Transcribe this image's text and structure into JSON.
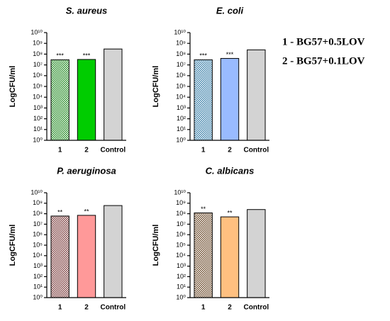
{
  "key": [
    "1 - BG57+0.5LOV",
    "2 - BG57+0.1LOV"
  ],
  "chart_data": [
    {
      "type": "bar",
      "title": "S. aureus",
      "ylabel": "LogCFU/ml",
      "log_scale": true,
      "categories": [
        "1",
        "2",
        "Control"
      ],
      "values": [
        30000000,
        32000000,
        300000000
      ],
      "colors": [
        "#1f8a1f",
        "#00cc00",
        "#d3d3d3"
      ],
      "checkered": [
        true,
        false,
        false
      ],
      "significance": [
        "***",
        "***"
      ],
      "ylim": [
        1,
        10000000000
      ],
      "yticks": [
        {
          "value": 1,
          "label": "10⁰"
        },
        {
          "value": 10,
          "label": "10¹"
        },
        {
          "value": 100,
          "label": "10²"
        },
        {
          "value": 1000,
          "label": "10³"
        },
        {
          "value": 10000,
          "label": "10⁴"
        },
        {
          "value": 100000,
          "label": "10⁵"
        },
        {
          "value": 1000000,
          "label": "10⁶"
        },
        {
          "value": 10000000,
          "label": "10⁷"
        },
        {
          "value": 100000000,
          "label": "10⁸"
        },
        {
          "value": 1000000000,
          "label": "10⁹"
        },
        {
          "value": 10000000000,
          "label": "10¹⁰"
        }
      ]
    },
    {
      "type": "bar",
      "title": "E. coli",
      "ylabel": "LogCFU/ml",
      "log_scale": true,
      "categories": [
        "1",
        "2",
        "Control"
      ],
      "values": [
        30000000,
        40000000,
        250000000
      ],
      "colors": [
        "#3a7fa8",
        "#99bbff",
        "#d3d3d3"
      ],
      "checkered": [
        true,
        false,
        false
      ],
      "significance": [
        "***",
        "***"
      ],
      "ylim": [
        1,
        10000000000
      ],
      "yticks": [
        {
          "value": 1,
          "label": "10⁰"
        },
        {
          "value": 10,
          "label": "10¹"
        },
        {
          "value": 100,
          "label": "10²"
        },
        {
          "value": 1000,
          "label": "10³"
        },
        {
          "value": 10000,
          "label": "10⁴"
        },
        {
          "value": 100000,
          "label": "10⁵"
        },
        {
          "value": 1000000,
          "label": "10⁶"
        },
        {
          "value": 10000000,
          "label": "10⁷"
        },
        {
          "value": 100000000,
          "label": "10⁸"
        },
        {
          "value": 1000000000,
          "label": "10⁹"
        },
        {
          "value": 10000000000,
          "label": "10¹⁰"
        }
      ]
    },
    {
      "type": "bar",
      "title": "P. aeruginosa",
      "ylabel": "LogCFU/ml",
      "log_scale": true,
      "categories": [
        "1",
        "2",
        "Control"
      ],
      "values": [
        60000000,
        70000000,
        600000000
      ],
      "colors": [
        "#7a3a3a",
        "#ff9999",
        "#d3d3d3"
      ],
      "checkered": [
        true,
        false,
        false
      ],
      "significance": [
        "**",
        "**"
      ],
      "ylim": [
        1,
        10000000000
      ],
      "yticks": [
        {
          "value": 1,
          "label": "10⁰"
        },
        {
          "value": 10,
          "label": "10¹"
        },
        {
          "value": 100,
          "label": "10²"
        },
        {
          "value": 1000,
          "label": "10³"
        },
        {
          "value": 10000,
          "label": "10⁴"
        },
        {
          "value": 100000,
          "label": "10⁵"
        },
        {
          "value": 1000000,
          "label": "10⁶"
        },
        {
          "value": 10000000,
          "label": "10⁷"
        },
        {
          "value": 100000000,
          "label": "10⁸"
        },
        {
          "value": 1000000000,
          "label": "10⁹"
        },
        {
          "value": 10000000000,
          "label": "10¹⁰"
        }
      ]
    },
    {
      "type": "bar",
      "title": "C. albicans",
      "ylabel": "LogCFU/ml",
      "log_scale": true,
      "categories": [
        "1",
        "2",
        "Control"
      ],
      "values": [
        120000000,
        50000000,
        250000000
      ],
      "colors": [
        "#6b4a2a",
        "#ffc080",
        "#d3d3d3"
      ],
      "checkered": [
        true,
        false,
        false
      ],
      "significance": [
        "**",
        "**"
      ],
      "ylim": [
        1,
        10000000000
      ],
      "yticks": [
        {
          "value": 1,
          "label": "10⁰"
        },
        {
          "value": 10,
          "label": "10¹"
        },
        {
          "value": 100,
          "label": "10²"
        },
        {
          "value": 1000,
          "label": "10³"
        },
        {
          "value": 10000,
          "label": "10⁴"
        },
        {
          "value": 100000,
          "label": "10⁵"
        },
        {
          "value": 1000000,
          "label": "10⁶"
        },
        {
          "value": 10000000,
          "label": "10⁷"
        },
        {
          "value": 100000000,
          "label": "10⁸"
        },
        {
          "value": 1000000000,
          "label": "10⁹"
        },
        {
          "value": 10000000000,
          "label": "10¹⁰"
        }
      ]
    }
  ]
}
